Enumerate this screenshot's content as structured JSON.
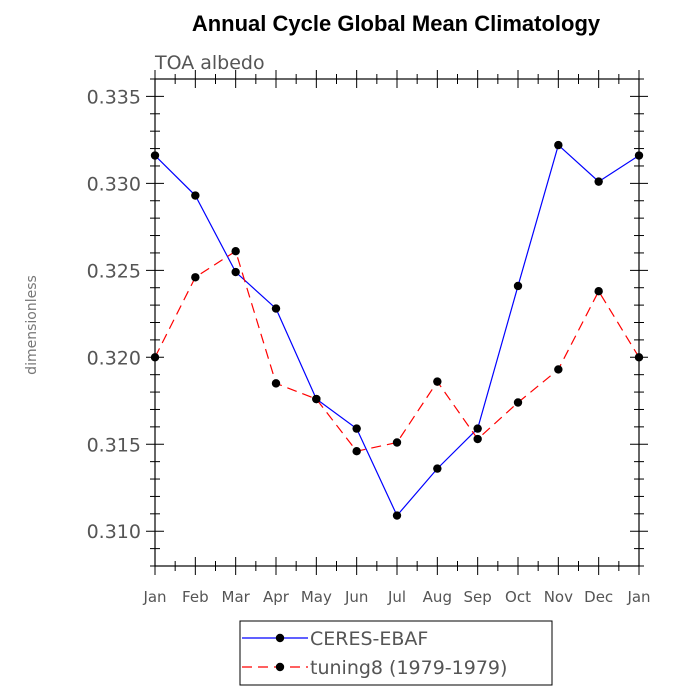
{
  "chart_data": {
    "type": "line",
    "title": "Annual Cycle Global Mean Climatology",
    "subtitle": "TOA albedo",
    "xlabel": "",
    "ylabel": "dimensionless",
    "categories": [
      "Jan",
      "Feb",
      "Mar",
      "Apr",
      "May",
      "Jun",
      "Jul",
      "Aug",
      "Sep",
      "Oct",
      "Nov",
      "Dec",
      "Jan"
    ],
    "ylim": [
      0.308,
      0.336
    ],
    "yticks": [
      "0.310",
      "0.315",
      "0.320",
      "0.325",
      "0.330",
      "0.335"
    ],
    "grid": false,
    "legend_placement": "bottom-center",
    "series": [
      {
        "name": "CERES-EBAF",
        "color": "#0000ff",
        "dash": "solid",
        "values": [
          0.3316,
          0.3293,
          0.3249,
          0.3228,
          0.3176,
          0.3159,
          0.3109,
          0.3136,
          0.3159,
          0.3241,
          0.3322,
          0.3301,
          0.3316
        ]
      },
      {
        "name": "tuning8 (1979-1979)",
        "color": "#ff0000",
        "dash": "dashed",
        "values": [
          0.32,
          0.3246,
          0.3261,
          0.3185,
          0.3176,
          0.3146,
          0.3151,
          0.3186,
          0.3153,
          0.3174,
          0.3193,
          0.3238,
          0.32
        ]
      }
    ]
  }
}
